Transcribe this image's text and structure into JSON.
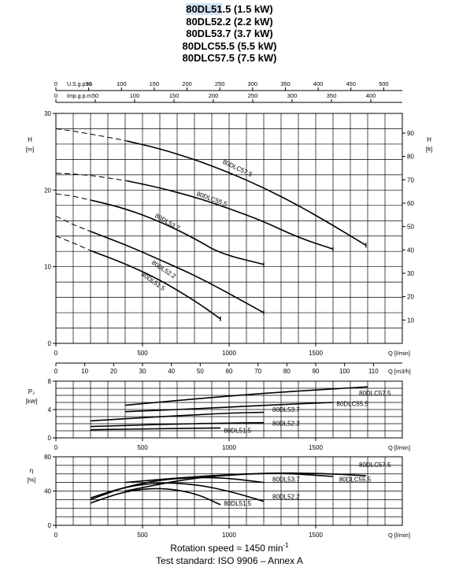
{
  "header": {
    "title_lines": [
      {
        "prefix": "80DL51",
        "rest": ".5 (1.5 kW)"
      },
      {
        "prefix": "",
        "rest": "80DL52.2 (2.2 kW)"
      },
      {
        "prefix": "",
        "rest": "80DL53.7 (3.7 kW)"
      },
      {
        "prefix": "",
        "rest": "80DLC55.5 (5.5 kW)"
      },
      {
        "prefix": "",
        "rest": "80DLC57.5 (7.5 kW)"
      }
    ]
  },
  "footer": {
    "rotation": "Rotation speed ≈ 1450 min",
    "rotation_exp": "-1",
    "standard": "Test standard: ISO 9906 – Annex A"
  },
  "chart_data": [
    {
      "type": "line",
      "title": "",
      "xlabel": "Q [l/min]",
      "ylabel": "H [m]",
      "y2label": "H [ft]",
      "xlim": [
        0,
        2000
      ],
      "ylim": [
        0,
        30
      ],
      "y2lim": [
        0,
        100
      ],
      "x_ticks": [
        0,
        500,
        1000,
        1500
      ],
      "y_ticks": [
        0,
        10,
        20,
        30
      ],
      "y2_ticks": [
        10,
        20,
        30,
        40,
        50,
        60,
        70,
        80,
        90
      ],
      "grid": true,
      "top_axes": [
        {
          "label": "U.S.g.p.m.",
          "ticks": [
            0,
            50,
            100,
            150,
            200,
            250,
            300,
            350,
            400,
            450,
            500
          ],
          "factor": 0.2642
        },
        {
          "label": "Imp.g.p.m.",
          "ticks": [
            0,
            50,
            100,
            150,
            200,
            250,
            300,
            350,
            400
          ],
          "factor": 0.22
        }
      ],
      "bottom_axis": {
        "label": "Q [m3/h]",
        "ticks": [
          0,
          10,
          20,
          30,
          40,
          50,
          60,
          70,
          80,
          90,
          100,
          110
        ],
        "factor": 0.06
      },
      "series": [
        {
          "name": "80DLC57.5",
          "label_x": 960,
          "label_y": 23.5,
          "label_angle": 25,
          "dashed": [
            [
              0,
              28
            ],
            [
              100,
              27.7
            ],
            [
              200,
              27.3
            ],
            [
              300,
              26.9
            ],
            [
              410,
              26.4
            ]
          ],
          "x": [
            410,
            600,
            800,
            1000,
            1200,
            1400,
            1600,
            1790
          ],
          "y": [
            26.4,
            25.4,
            24.0,
            22.3,
            20.3,
            18.0,
            15.4,
            12.8
          ]
        },
        {
          "name": "80DLC55.5",
          "label_x": 810,
          "label_y": 19.3,
          "label_angle": 20,
          "dashed": [
            [
              0,
              22.2
            ],
            [
              100,
              22.1
            ],
            [
              200,
              21.9
            ],
            [
              300,
              21.6
            ],
            [
              410,
              21.2
            ]
          ],
          "x": [
            410,
            600,
            800,
            1000,
            1200,
            1400,
            1600
          ],
          "y": [
            21.2,
            20.3,
            19.1,
            17.6,
            15.9,
            13.8,
            12.3
          ]
        },
        {
          "name": "80DL53.7",
          "label_x": 570,
          "label_y": 16.5,
          "label_angle": 30,
          "dashed": [
            [
              0,
              19.5
            ],
            [
              100,
              19.2
            ],
            [
              200,
              18.7
            ]
          ],
          "x": [
            200,
            400,
            600,
            800,
            950,
            1200
          ],
          "y": [
            18.7,
            17.6,
            15.9,
            13.7,
            11.7,
            10.3
          ]
        },
        {
          "name": "80DL52.2",
          "label_x": 550,
          "label_y": 10.4,
          "label_angle": 33,
          "dashed": [
            [
              0,
              16.6
            ],
            [
              100,
              15.5
            ],
            [
              200,
              14.6
            ]
          ],
          "x": [
            200,
            400,
            600,
            800,
            1000,
            1200
          ],
          "y": [
            14.6,
            12.9,
            10.9,
            8.9,
            6.5,
            4.0
          ]
        },
        {
          "name": "80DL51.5",
          "label_x": 490,
          "label_y": 8.9,
          "label_angle": 35,
          "dashed": [
            [
              0,
              14.0
            ],
            [
              100,
              13.1
            ],
            [
              200,
              12.1
            ]
          ],
          "x": [
            200,
            400,
            600,
            800,
            950
          ],
          "y": [
            12.1,
            10.4,
            8.3,
            5.6,
            3.2
          ]
        }
      ]
    },
    {
      "type": "line",
      "title": "",
      "xlabel": "Q [l/min]",
      "ylabel": "P2 [kW]",
      "xlim": [
        0,
        2000
      ],
      "ylim": [
        0,
        8
      ],
      "x_ticks": [
        0,
        500,
        1000,
        1500
      ],
      "y_ticks": [
        0,
        4,
        8
      ],
      "grid": true,
      "series": [
        {
          "name": "80DLC57.5",
          "label_x": 1750,
          "label_y": 6.0,
          "x": [
            400,
            800,
            1200,
            1600,
            1800
          ],
          "y": [
            4.6,
            5.5,
            6.3,
            6.9,
            7.2
          ]
        },
        {
          "name": "80DLC55.5",
          "label_x": 1620,
          "label_y": 4.5,
          "x": [
            400,
            800,
            1200,
            1600
          ],
          "y": [
            3.7,
            4.1,
            4.6,
            5.0
          ]
        },
        {
          "name": "80DL53.7",
          "label_x": 1250,
          "label_y": 3.65,
          "x": [
            200,
            600,
            1000,
            1200
          ],
          "y": [
            2.4,
            3.0,
            3.5,
            3.6
          ]
        },
        {
          "name": "80DL52.2",
          "label_x": 1250,
          "label_y": 1.75,
          "x": [
            200,
            600,
            1000,
            1200
          ],
          "y": [
            1.6,
            1.9,
            2.1,
            2.15
          ]
        },
        {
          "name": "80DL51.5",
          "label_x": 970,
          "label_y": 0.75,
          "x": [
            200,
            600,
            950
          ],
          "y": [
            1.15,
            1.3,
            1.4
          ]
        }
      ]
    },
    {
      "type": "line",
      "title": "",
      "xlabel": "Q [l/min]",
      "ylabel": "η [%]",
      "xlim": [
        0,
        2000
      ],
      "ylim": [
        0,
        80
      ],
      "x_ticks": [
        0,
        500,
        1000,
        1500
      ],
      "y_ticks": [
        0,
        40,
        80
      ],
      "grid": true,
      "series": [
        {
          "name": "80DLC57.5",
          "label_x": 1750,
          "label_y": 68,
          "x": [
            400,
            800,
            1200,
            1500,
            1790
          ],
          "y": [
            50,
            57,
            61,
            61,
            58
          ]
        },
        {
          "name": "80DLC55.5",
          "label_x": 1635,
          "label_y": 51,
          "x": [
            400,
            800,
            1200,
            1400,
            1600
          ],
          "y": [
            40,
            56,
            61,
            60,
            57
          ]
        },
        {
          "name": "80DL53.7",
          "label_x": 1250,
          "label_y": 51,
          "x": [
            200,
            400,
            600,
            800,
            1000,
            1200
          ],
          "y": [
            30,
            45,
            53,
            56,
            55,
            50
          ]
        },
        {
          "name": "80DL52.2",
          "label_x": 1250,
          "label_y": 31,
          "x": [
            200,
            400,
            600,
            800,
            1000,
            1200
          ],
          "y": [
            32,
            45,
            50,
            48,
            40,
            28
          ]
        },
        {
          "name": "80DL51.5",
          "label_x": 970,
          "label_y": 23,
          "x": [
            200,
            400,
            600,
            800,
            950
          ],
          "y": [
            26,
            40,
            44,
            38,
            24
          ]
        }
      ]
    }
  ]
}
